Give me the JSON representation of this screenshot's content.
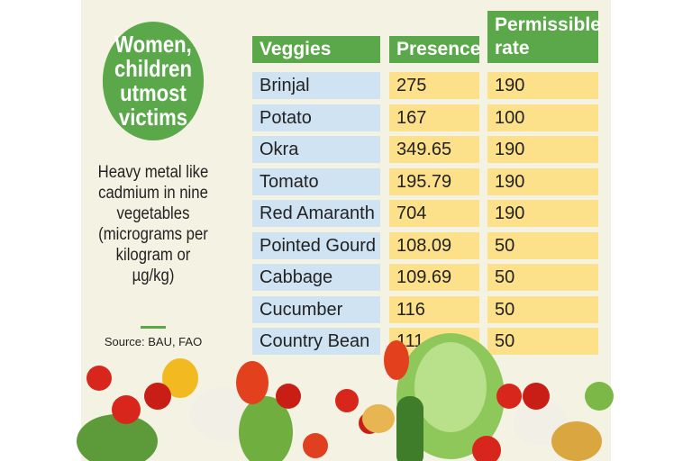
{
  "badge": {
    "lines": [
      "Women,",
      "children",
      "utmost",
      "victims"
    ]
  },
  "description": {
    "lines": [
      "Heavy metal like",
      "cadmium in nine",
      "vegetables",
      "(micrograms per",
      "kilogram or",
      "µg/kg)"
    ]
  },
  "source": "Source: BAU, FAO",
  "table": {
    "header": [
      "Veggies",
      "Presence",
      "Permissible rate"
    ],
    "rows": [
      [
        "Brinjal",
        "275",
        "190"
      ],
      [
        "Potato",
        "167",
        "100"
      ],
      [
        "Okra",
        "349.65",
        "190"
      ],
      [
        "Tomato",
        "195.79",
        "190"
      ],
      [
        "Red Amaranth",
        "704",
        "190"
      ],
      [
        "Pointed Gourd",
        "108.09",
        "50"
      ],
      [
        "Cabbage",
        "109.69",
        "50"
      ],
      [
        "Cucumber",
        "116",
        "50"
      ],
      [
        "Country Bean",
        "111",
        "50"
      ]
    ]
  }
}
